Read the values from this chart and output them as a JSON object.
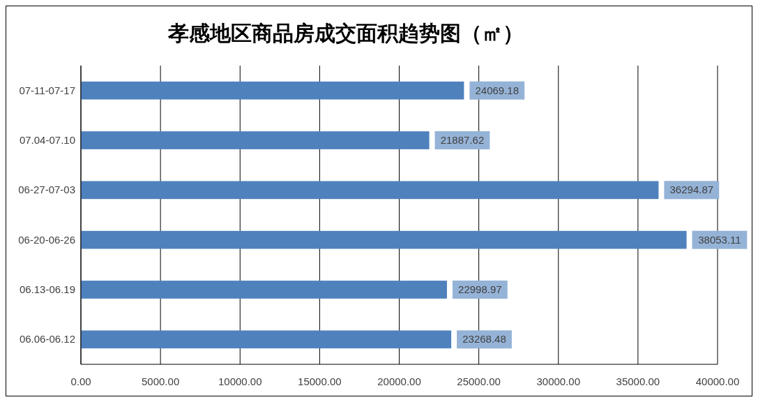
{
  "chart_data": {
    "type": "bar",
    "orientation": "horizontal",
    "title": "孝感地区商品房成交面积趋势图（㎡）",
    "categories": [
      "07-11-07-17",
      "07.04-07.10",
      "06-27-07-03",
      "06-20-06-26",
      "06.13-06.19",
      "06.06-06.12"
    ],
    "values": [
      24069.18,
      21887.62,
      36294.87,
      38053.11,
      22998.97,
      23268.48
    ],
    "color": "#4f81bd",
    "data_labels": true,
    "grid": "x",
    "xlim": [
      0,
      40000
    ],
    "xticks": [
      {
        "value": 0,
        "label": "0.00"
      },
      {
        "value": 5000,
        "label": "5000.00"
      },
      {
        "value": 10000,
        "label": "10000.00"
      },
      {
        "value": 15000,
        "label": "15000.00"
      },
      {
        "value": 20000,
        "label": "20000.00"
      },
      {
        "value": 25000,
        "label": "25000.00"
      },
      {
        "value": 30000,
        "label": "30000.00"
      },
      {
        "value": 35000,
        "label": "35000.00"
      },
      {
        "value": 40000,
        "label": "40000.00"
      }
    ]
  }
}
